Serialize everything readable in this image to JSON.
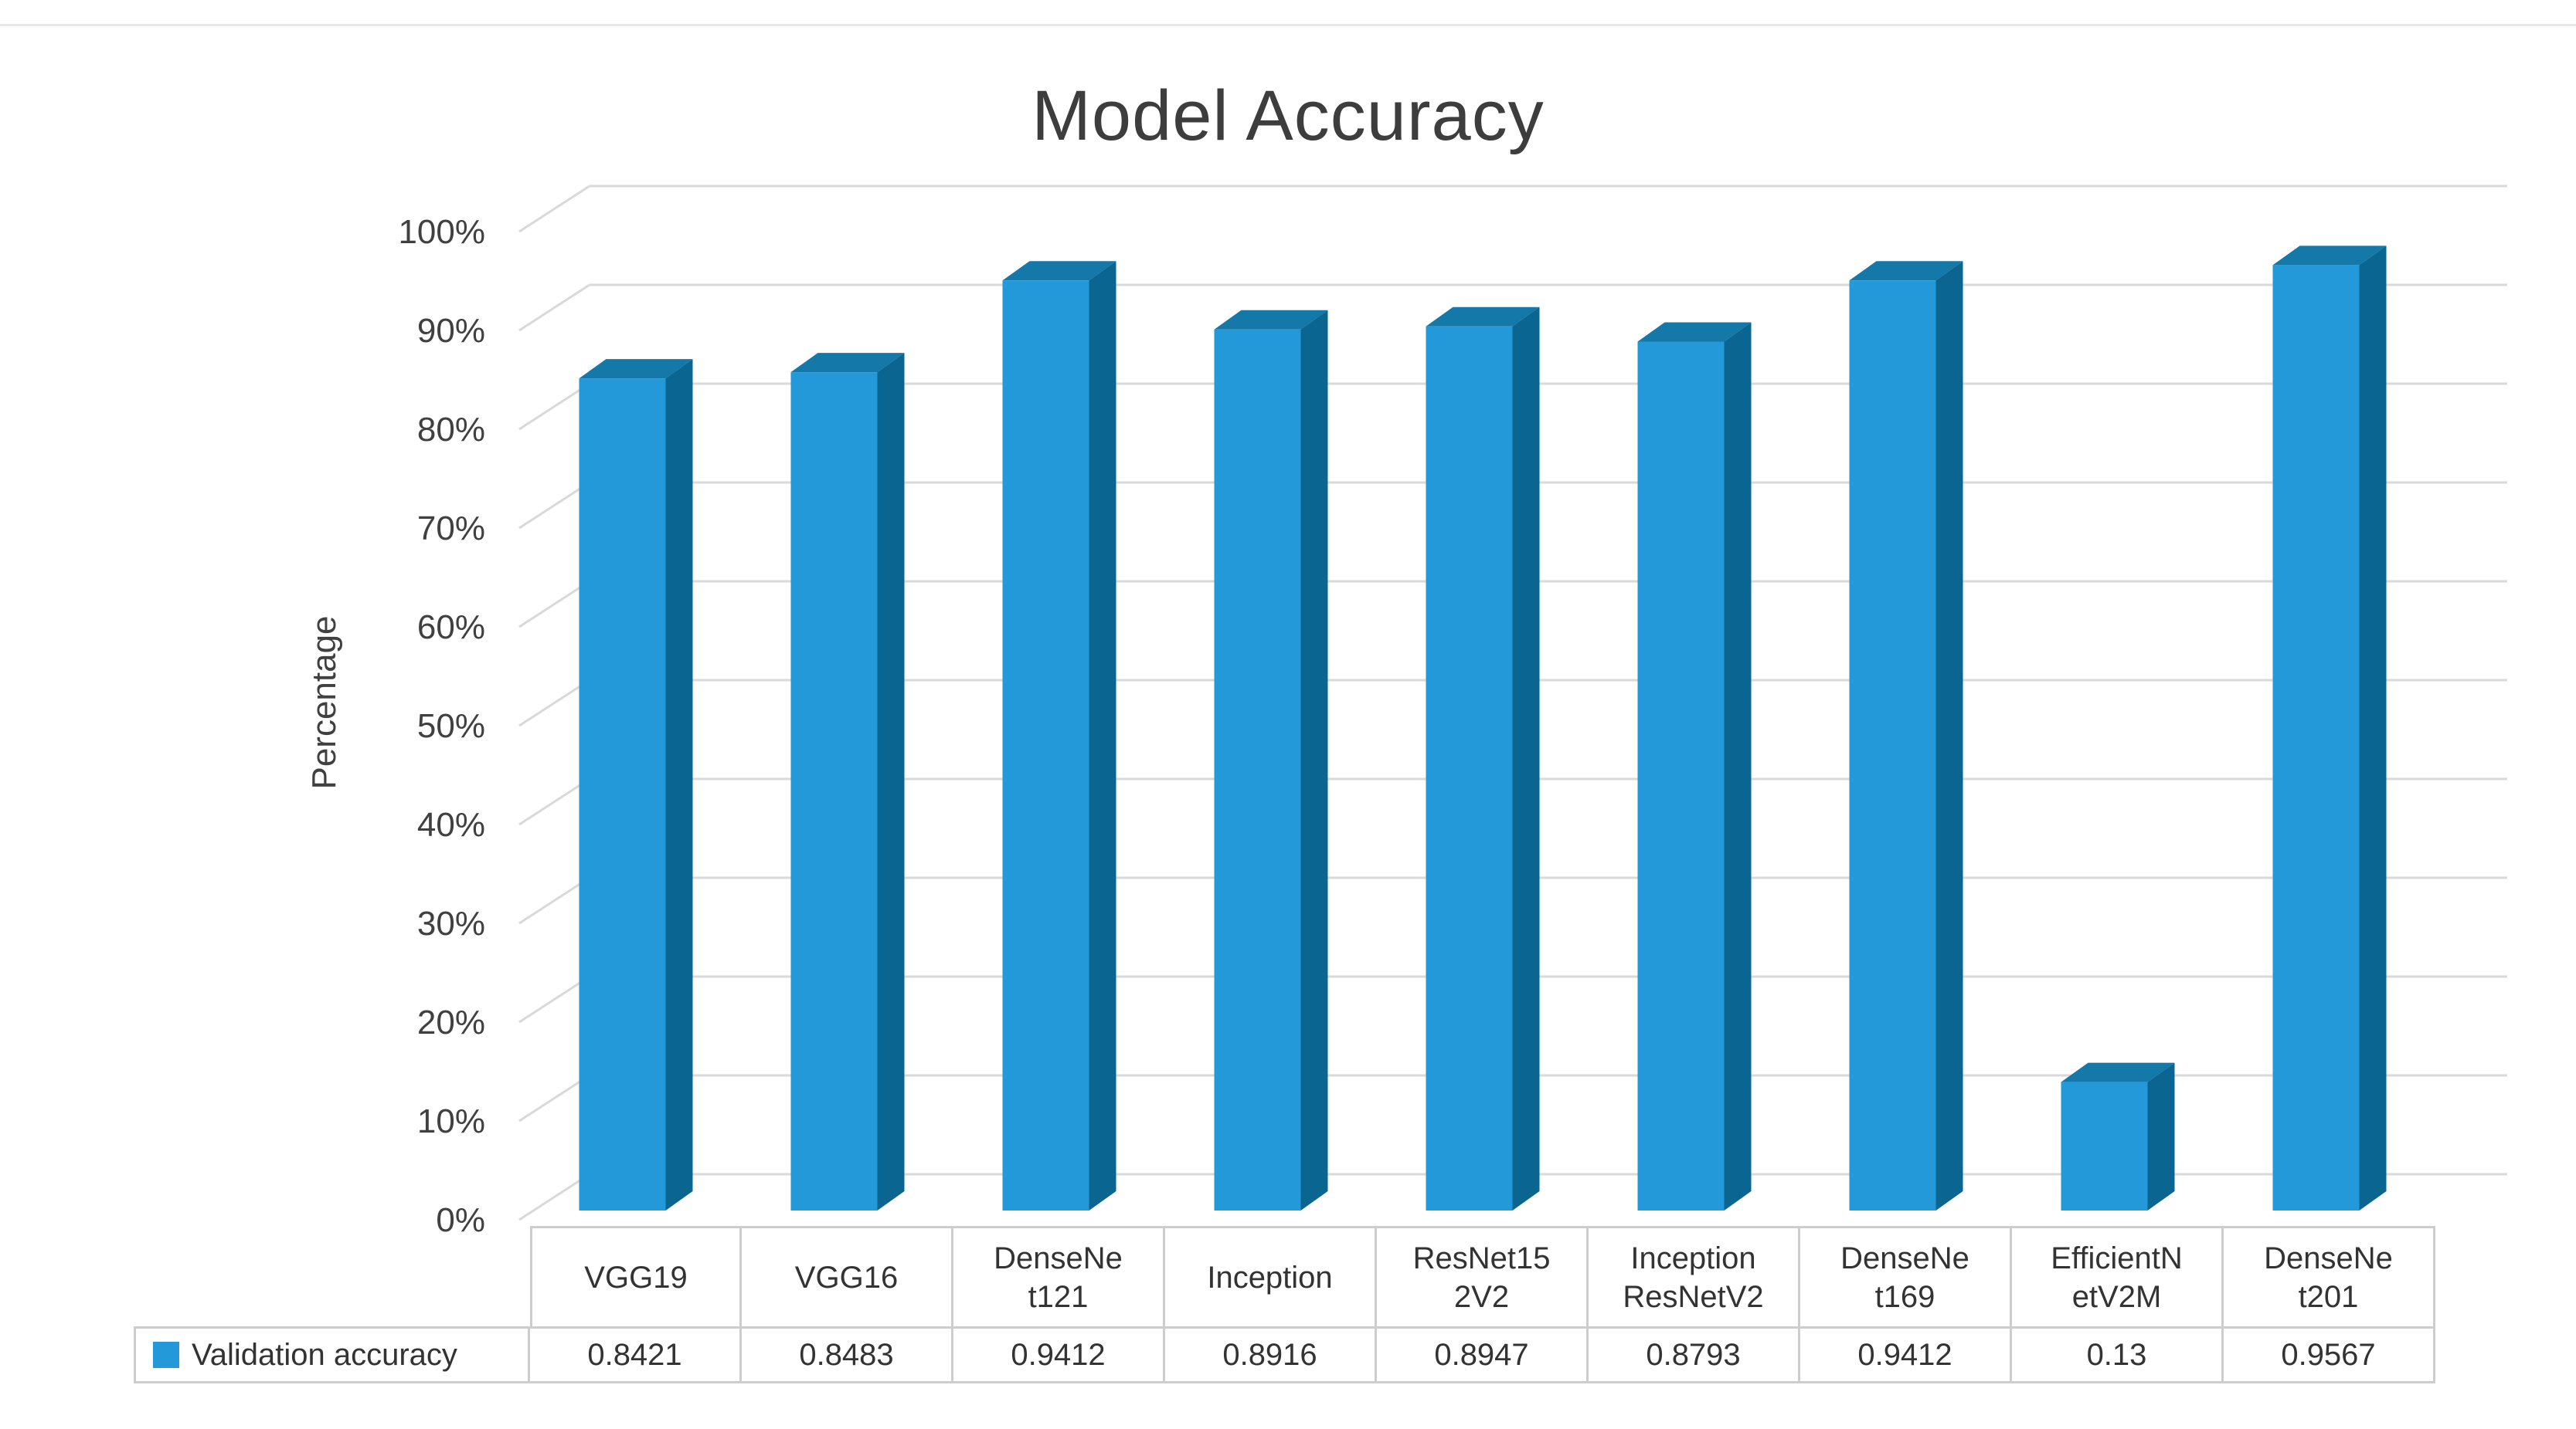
{
  "page": {
    "title": "Model Accuracy"
  },
  "chart_data": {
    "type": "bar",
    "style": "3d-column",
    "title": "Model Accuracy",
    "xlabel": "",
    "ylabel": "Percentage",
    "legend_position": "bottom-data-table",
    "legend": [
      {
        "label": "Validation accuracy",
        "swatch_color": "#2399D9"
      }
    ],
    "categories": [
      "VGG19",
      "VGG16",
      "DenseNet121",
      "Inception",
      "ResNet152V2",
      "InceptionResNetV2",
      "DenseNet169",
      "EfficientNetV2M",
      "DenseNet201"
    ],
    "category_display_lines": [
      [
        "VGG19"
      ],
      [
        "VGG16"
      ],
      [
        "DenseNe",
        "t121"
      ],
      [
        "Inception"
      ],
      [
        "ResNet15",
        "2V2"
      ],
      [
        "Inception",
        "ResNetV2"
      ],
      [
        "DenseNe",
        "t169"
      ],
      [
        "EfficientN",
        "etV2M"
      ],
      [
        "DenseNe",
        "t201"
      ]
    ],
    "series": [
      {
        "name": "Validation accuracy",
        "values": [
          0.8421,
          0.8483,
          0.9412,
          0.8916,
          0.8947,
          0.8793,
          0.9412,
          0.13,
          0.9567
        ]
      }
    ],
    "value_labels": [
      "0.8421",
      "0.8483",
      "0.9412",
      "0.8916",
      "0.8947",
      "0.8793",
      "0.9412",
      "0.13",
      "0.9567"
    ],
    "y_axis": {
      "tick_labels": [
        "100%",
        "90%",
        "80%",
        "70%",
        "60%",
        "50%",
        "40%",
        "30%",
        "20%",
        "10%",
        "0%"
      ],
      "min": 0,
      "max": 1,
      "grid": true
    },
    "colors": {
      "bar_front": "#2399D9",
      "bar_top": "#1478A8",
      "bar_side": "#0A6590",
      "gridline": "#D9D9D9",
      "axis_text": "#404040",
      "title_text": "#3D3D3D",
      "table_border": "#CDCDCD",
      "table_text": "#333333",
      "top_rule": "#E8E8E8"
    }
  }
}
